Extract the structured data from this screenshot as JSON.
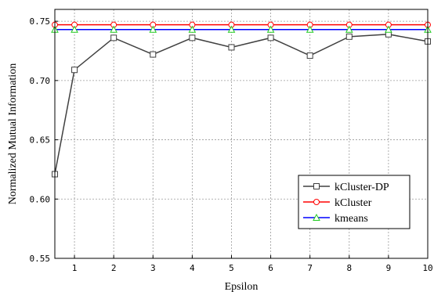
{
  "chart_data": {
    "type": "line",
    "title": "",
    "xlabel": "Epsilon",
    "ylabel": "Normalized Mutual Information",
    "xlim": [
      0.5,
      10
    ],
    "ylim": [
      0.55,
      0.76
    ],
    "xticks": [
      1,
      2,
      3,
      4,
      5,
      6,
      7,
      8,
      9,
      10
    ],
    "xtick_labels": [
      "1",
      "2",
      "3",
      "4",
      "5",
      "6",
      "7",
      "8",
      "9",
      "10"
    ],
    "yticks": [
      0.55,
      0.6,
      0.65,
      0.7,
      0.75
    ],
    "ytick_labels": [
      "0.55",
      "0.60",
      "0.65",
      "0.70",
      "0.75"
    ],
    "grid": true,
    "legend_position": "bottom-right",
    "series": [
      {
        "name": "kCluster-DP",
        "color": "#404040",
        "marker": "square",
        "x": [
          0.5,
          1,
          2,
          3,
          4,
          5,
          6,
          7,
          8,
          9,
          10
        ],
        "y": [
          0.621,
          0.709,
          0.736,
          0.722,
          0.736,
          0.728,
          0.736,
          0.721,
          0.737,
          0.739,
          0.733
        ]
      },
      {
        "name": "kCluster",
        "color": "#ff0000",
        "marker": "circle",
        "x": [
          0.5,
          1,
          2,
          3,
          4,
          5,
          6,
          7,
          8,
          9,
          10
        ],
        "y": [
          0.747,
          0.747,
          0.747,
          0.747,
          0.747,
          0.747,
          0.747,
          0.747,
          0.747,
          0.747,
          0.747
        ]
      },
      {
        "name": "kmeans",
        "color": "#0000ff",
        "marker_color": "#22cc22",
        "marker": "triangle",
        "x": [
          0.5,
          1,
          2,
          3,
          4,
          5,
          6,
          7,
          8,
          9,
          10
        ],
        "y": [
          0.743,
          0.743,
          0.743,
          0.743,
          0.743,
          0.743,
          0.743,
          0.743,
          0.743,
          0.743,
          0.743
        ]
      }
    ]
  }
}
